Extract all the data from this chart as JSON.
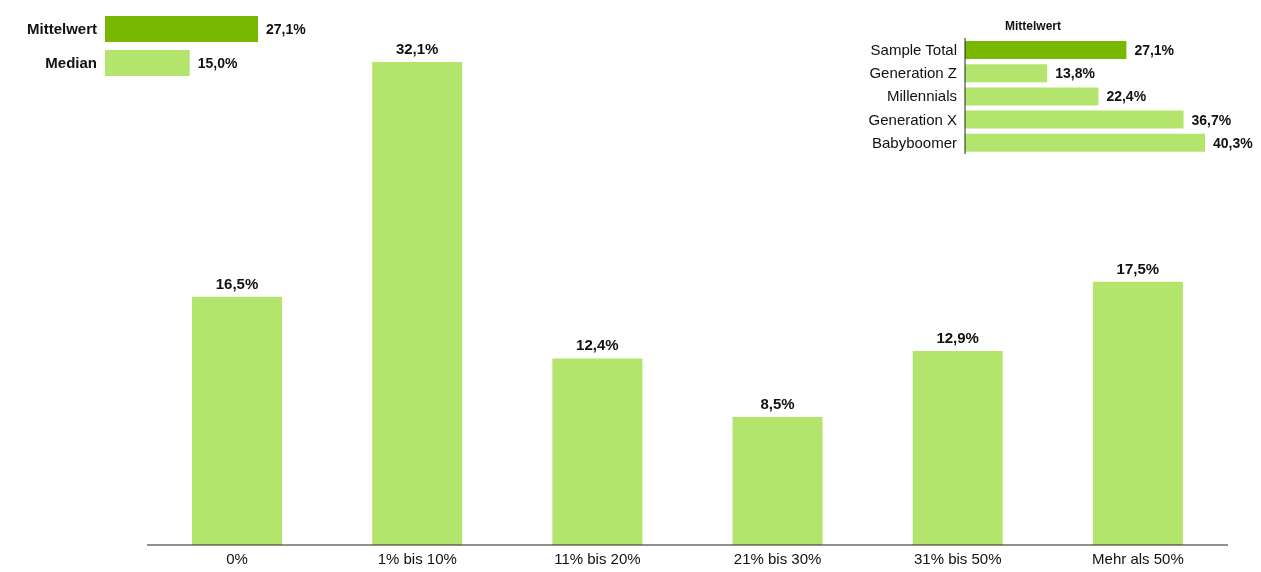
{
  "chart_data": [
    {
      "type": "bar",
      "categories": [
        "0%",
        "1% bis 10%",
        "11% bis 20%",
        "21% bis 30%",
        "31% bis 50%",
        "Mehr als 50%"
      ],
      "values": [
        16.5,
        32.1,
        12.4,
        8.5,
        12.9,
        17.5
      ],
      "value_labels": [
        "16,5%",
        "32,1%",
        "12,4%",
        "8,5%",
        "12,9%",
        "17,5%"
      ],
      "color": "#b3e46c"
    },
    {
      "type": "bar",
      "orientation": "horizontal",
      "categories": [
        "Mittelwert",
        "Median"
      ],
      "values": [
        27.1,
        15.0
      ],
      "value_labels": [
        "27,1%",
        "15,0%"
      ],
      "colors": [
        "#78b800",
        "#b3e46c"
      ]
    },
    {
      "type": "bar",
      "orientation": "horizontal",
      "title": "Mittelwert",
      "categories": [
        "Sample Total",
        "Generation Z",
        "Millennials",
        "Generation X",
        "Babyboomer"
      ],
      "values": [
        27.1,
        13.8,
        22.4,
        36.7,
        40.3
      ],
      "value_labels": [
        "27,1%",
        "13,8%",
        "22,4%",
        "36,7%",
        "40,3%"
      ],
      "colors": [
        "#78b800",
        "#b3e46c",
        "#b3e46c",
        "#b3e46c",
        "#b3e46c"
      ]
    }
  ]
}
